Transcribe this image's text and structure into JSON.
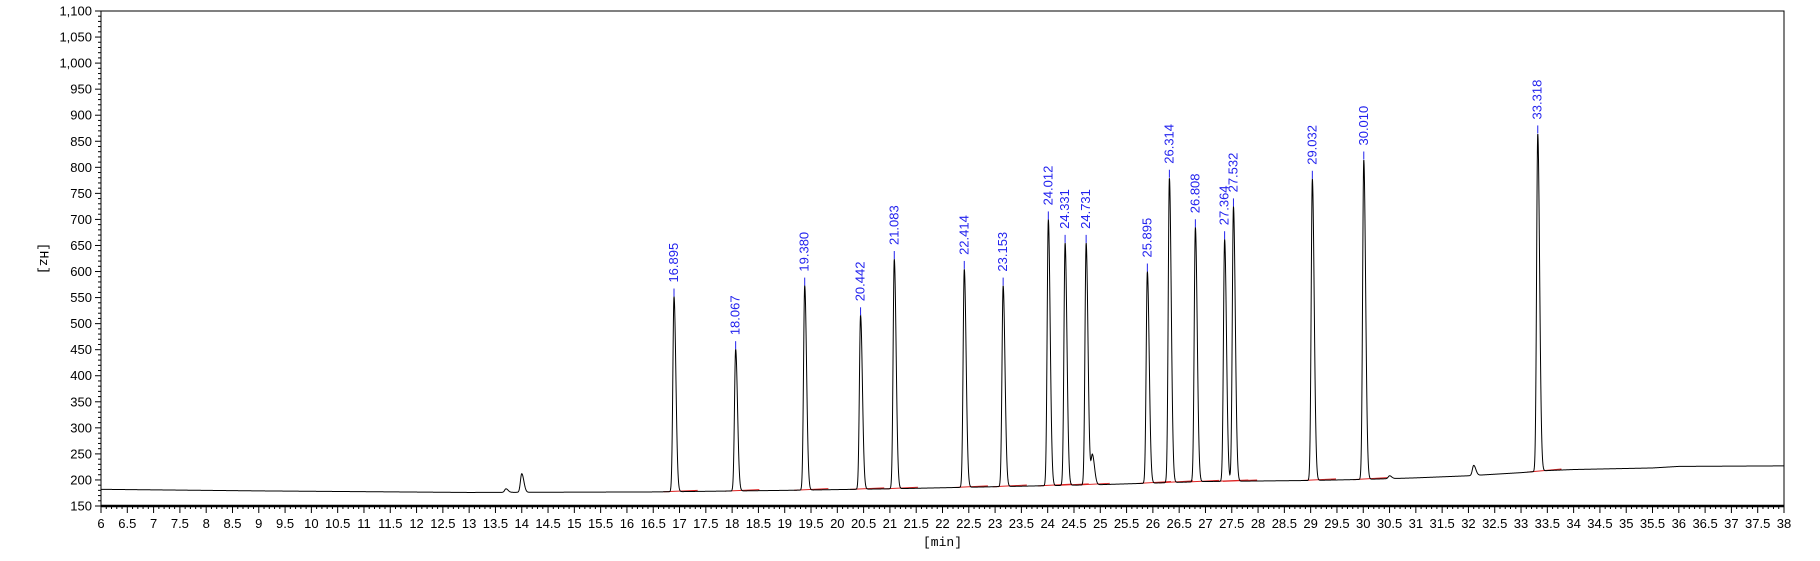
{
  "chart_data": {
    "type": "line",
    "title": "",
    "xlabel": "[min]",
    "ylabel": "[Hz]",
    "xlim": [
      6,
      38
    ],
    "ylim": [
      150,
      1100
    ],
    "x_ticks_major": [
      "6",
      "6.5",
      "7",
      "7.5",
      "8",
      "8.5",
      "9",
      "9.5",
      "10",
      "10.5",
      "11",
      "11.5",
      "12",
      "12.5",
      "13",
      "13.5",
      "14",
      "14.5",
      "15",
      "15.5",
      "16",
      "16.5",
      "17",
      "17.5",
      "18",
      "18.5",
      "19",
      "19.5",
      "20",
      "20.5",
      "21",
      "21.5",
      "22",
      "22.5",
      "23",
      "23.5",
      "24",
      "24.5",
      "25",
      "25.5",
      "26",
      "26.5",
      "27",
      "27.5",
      "28",
      "28.5",
      "29",
      "29.5",
      "30",
      "30.5",
      "31",
      "31.5",
      "32",
      "32.5",
      "33",
      "33.5",
      "34",
      "34.5",
      "35",
      "35.5",
      "36",
      "36.5",
      "37",
      "37.5",
      "38"
    ],
    "y_ticks": [
      "150",
      "200",
      "250",
      "300",
      "350",
      "400",
      "450",
      "500",
      "550",
      "600",
      "650",
      "700",
      "750",
      "800",
      "850",
      "900",
      "950",
      "1,000",
      "1,050",
      "1,100"
    ],
    "grid": false,
    "line_color": "#000000",
    "label_color": "#2222ee",
    "baseline_color": "#dd2222",
    "baseline": [
      [
        6,
        182
      ],
      [
        9,
        179
      ],
      [
        13,
        176
      ],
      [
        16.5,
        177
      ],
      [
        19,
        180
      ],
      [
        21,
        183
      ],
      [
        23,
        187
      ],
      [
        25,
        191
      ],
      [
        26,
        194
      ],
      [
        27,
        197
      ],
      [
        28,
        198
      ],
      [
        29,
        199
      ],
      [
        30,
        201
      ],
      [
        31,
        204
      ],
      [
        32,
        208
      ],
      [
        33,
        214
      ],
      [
        33.5,
        218
      ],
      [
        34,
        220
      ],
      [
        35.5,
        223
      ],
      [
        36,
        226
      ],
      [
        38,
        227
      ]
    ],
    "minor_peaks": [
      {
        "rt": 14.0,
        "height": 212
      },
      {
        "rt": 24.85,
        "height": 248
      },
      {
        "rt": 32.1,
        "height": 228
      },
      {
        "rt": 30.5,
        "height": 208
      },
      {
        "rt": 13.7,
        "height": 183
      }
    ],
    "peaks": [
      {
        "label": "16.895",
        "rt": 16.895,
        "height": 552
      },
      {
        "label": "18.067",
        "rt": 18.067,
        "height": 451
      },
      {
        "label": "19.380",
        "rt": 19.38,
        "height": 573
      },
      {
        "label": "20.442",
        "rt": 20.442,
        "height": 516
      },
      {
        "label": "21.083",
        "rt": 21.083,
        "height": 624
      },
      {
        "label": "22.414",
        "rt": 22.414,
        "height": 605
      },
      {
        "label": "23.153",
        "rt": 23.153,
        "height": 573
      },
      {
        "label": "24.012",
        "rt": 24.012,
        "height": 700
      },
      {
        "label": "24.331",
        "rt": 24.331,
        "height": 655
      },
      {
        "label": "24.731",
        "rt": 24.731,
        "height": 655
      },
      {
        "label": "25.895",
        "rt": 25.895,
        "height": 600
      },
      {
        "label": "26.314",
        "rt": 26.314,
        "height": 780
      },
      {
        "label": "26.808",
        "rt": 26.808,
        "height": 685
      },
      {
        "label": "27.364",
        "rt": 27.364,
        "height": 662
      },
      {
        "label": "27.532",
        "rt": 27.532,
        "height": 725
      },
      {
        "label": "29.032",
        "rt": 29.032,
        "height": 778
      },
      {
        "label": "30.010",
        "rt": 30.01,
        "height": 815
      },
      {
        "label": "33.318",
        "rt": 33.318,
        "height": 865
      }
    ]
  }
}
